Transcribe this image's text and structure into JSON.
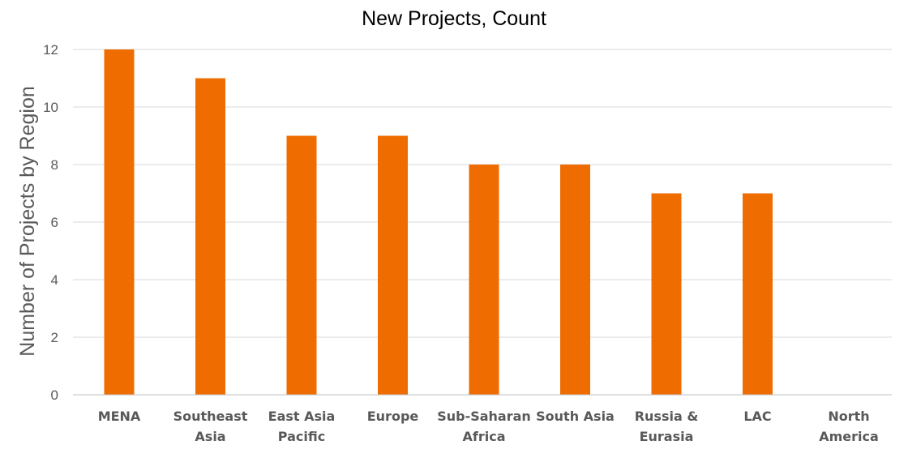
{
  "chart_data": {
    "type": "bar",
    "title": "New Projects, Count",
    "xlabel": "",
    "ylabel": "Number of Projects by Region",
    "ylim": [
      0,
      12
    ],
    "yticks": [
      0,
      2,
      4,
      6,
      8,
      10,
      12
    ],
    "grid": true,
    "legend": "none",
    "categories": [
      [
        "MENA"
      ],
      [
        "Southeast",
        "Asia"
      ],
      [
        "East Asia",
        "Pacific"
      ],
      [
        "Europe"
      ],
      [
        "Sub-Saharan",
        "Africa"
      ],
      [
        "South Asia"
      ],
      [
        "Russia &",
        "Eurasia"
      ],
      [
        "LAC"
      ],
      [
        "North",
        "America"
      ]
    ],
    "values": [
      12,
      11,
      9,
      9,
      8,
      8,
      7,
      7,
      0
    ],
    "bar_color": "#ef6c00"
  }
}
